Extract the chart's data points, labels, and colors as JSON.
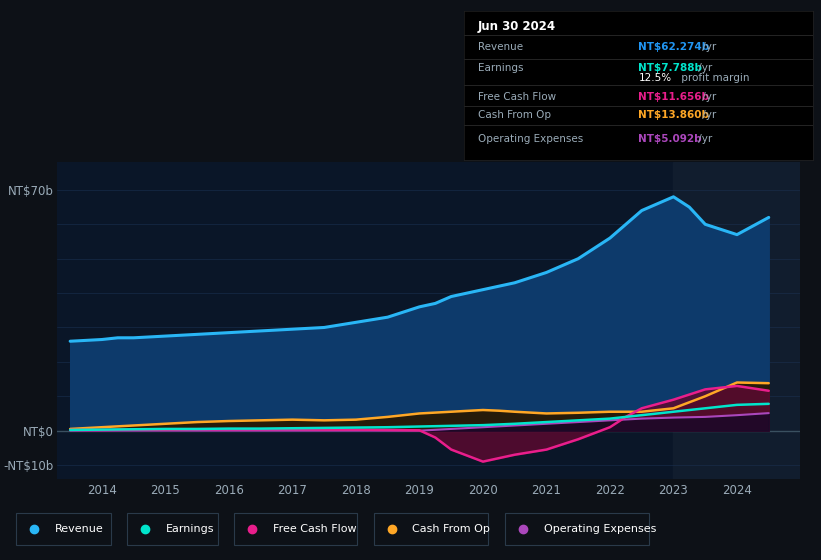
{
  "background_color": "#0d1117",
  "plot_bg_color": "#0a1628",
  "title_box": {
    "date": "Jun 30 2024",
    "rows": [
      {
        "label": "Revenue",
        "value": "NT$62.274b",
        "value_color": "#2196f3",
        "suffix": " /yr"
      },
      {
        "label": "Earnings",
        "value": "NT$7.788b",
        "value_color": "#00e5cc",
        "suffix": " /yr"
      },
      {
        "label": "",
        "value": "12.5%",
        "value_color": "#ffffff",
        "suffix": " profit margin"
      },
      {
        "label": "Free Cash Flow",
        "value": "NT$11.656b",
        "value_color": "#e91e8c",
        "suffix": " /yr"
      },
      {
        "label": "Cash From Op",
        "value": "NT$13.860b",
        "value_color": "#ffa726",
        "suffix": " /yr"
      },
      {
        "label": "Operating Expenses",
        "value": "NT$5.092b",
        "value_color": "#ab47bc",
        "suffix": " /yr"
      }
    ]
  },
  "ylim": [
    -14,
    78
  ],
  "xlim": [
    2013.3,
    2025.0
  ],
  "xtick_years": [
    2014,
    2015,
    2016,
    2017,
    2018,
    2019,
    2020,
    2021,
    2022,
    2023,
    2024
  ],
  "series": {
    "Revenue": {
      "color": "#29b6f6",
      "fill_color": "#0d3a6b",
      "x": [
        2013.5,
        2014.0,
        2014.25,
        2014.5,
        2015.0,
        2015.5,
        2016.0,
        2016.5,
        2017.0,
        2017.5,
        2018.0,
        2018.5,
        2019.0,
        2019.25,
        2019.5,
        2020.0,
        2020.5,
        2021.0,
        2021.5,
        2022.0,
        2022.25,
        2022.5,
        2023.0,
        2023.25,
        2023.5,
        2024.0,
        2024.5
      ],
      "y": [
        26,
        26.5,
        27,
        27,
        27.5,
        28,
        28.5,
        29,
        29.5,
        30,
        31.5,
        33,
        36,
        37,
        39,
        41,
        43,
        46,
        50,
        56,
        60,
        64,
        68,
        65,
        60,
        57,
        62
      ]
    },
    "Earnings": {
      "color": "#00e5cc",
      "x": [
        2013.5,
        2014.0,
        2014.5,
        2015.0,
        2015.5,
        2016.0,
        2016.5,
        2017.0,
        2017.5,
        2018.0,
        2018.5,
        2019.0,
        2019.5,
        2020.0,
        2020.5,
        2021.0,
        2021.5,
        2022.0,
        2022.5,
        2023.0,
        2023.5,
        2024.0,
        2024.5
      ],
      "y": [
        0.2,
        0.3,
        0.4,
        0.5,
        0.5,
        0.6,
        0.6,
        0.7,
        0.8,
        0.9,
        1.0,
        1.2,
        1.4,
        1.6,
        2.0,
        2.5,
        3.0,
        3.5,
        4.5,
        5.5,
        6.5,
        7.5,
        7.8
      ]
    },
    "Free Cash Flow": {
      "color": "#e91e8c",
      "fill_color": "#5a0a30",
      "x": [
        2013.5,
        2014.0,
        2014.5,
        2015.0,
        2015.5,
        2016.0,
        2016.5,
        2017.0,
        2017.5,
        2018.0,
        2018.5,
        2019.0,
        2019.25,
        2019.5,
        2020.0,
        2020.5,
        2021.0,
        2021.5,
        2022.0,
        2022.25,
        2022.5,
        2023.0,
        2023.5,
        2024.0,
        2024.5
      ],
      "y": [
        0.2,
        0.2,
        0.3,
        0.3,
        0.4,
        0.4,
        0.4,
        0.4,
        0.3,
        0.3,
        0.2,
        0.1,
        -2,
        -5.5,
        -9,
        -7,
        -5.5,
        -2.5,
        1,
        4,
        6.5,
        9,
        12,
        13,
        11.6
      ]
    },
    "Cash From Op": {
      "color": "#ffa726",
      "fill_color": "#2a1800",
      "x": [
        2013.5,
        2014.0,
        2014.5,
        2015.0,
        2015.5,
        2016.0,
        2016.5,
        2017.0,
        2017.5,
        2018.0,
        2018.5,
        2019.0,
        2019.5,
        2020.0,
        2020.25,
        2020.5,
        2021.0,
        2021.5,
        2022.0,
        2022.5,
        2023.0,
        2023.5,
        2024.0,
        2024.5
      ],
      "y": [
        0.5,
        1.0,
        1.5,
        2.0,
        2.5,
        2.8,
        3.0,
        3.2,
        3.0,
        3.2,
        4.0,
        5.0,
        5.5,
        6.0,
        5.8,
        5.5,
        5.0,
        5.2,
        5.5,
        5.5,
        6.5,
        10,
        14,
        13.8
      ]
    },
    "Operating Expenses": {
      "color": "#ab47bc",
      "fill_color": "#1a0828",
      "x": [
        2013.5,
        2014.0,
        2014.5,
        2015.0,
        2015.5,
        2016.0,
        2016.5,
        2017.0,
        2017.5,
        2018.0,
        2018.5,
        2019.0,
        2019.5,
        2020.0,
        2020.5,
        2021.0,
        2021.5,
        2022.0,
        2022.5,
        2023.0,
        2023.5,
        2024.0,
        2024.5
      ],
      "y": [
        0,
        0,
        0,
        0,
        0,
        0,
        0,
        0,
        0,
        0,
        0,
        0,
        0.5,
        1.0,
        1.5,
        2.0,
        2.5,
        3.0,
        3.5,
        3.8,
        4.0,
        4.5,
        5.1
      ]
    }
  },
  "legend": [
    {
      "label": "Revenue",
      "color": "#29b6f6"
    },
    {
      "label": "Earnings",
      "color": "#00e5cc"
    },
    {
      "label": "Free Cash Flow",
      "color": "#e91e8c"
    },
    {
      "label": "Cash From Op",
      "color": "#ffa726"
    },
    {
      "label": "Operating Expenses",
      "color": "#ab47bc"
    }
  ],
  "grid_color": "#1a3050",
  "text_color": "#9aabb8",
  "shaded_region_start": 2023.0
}
